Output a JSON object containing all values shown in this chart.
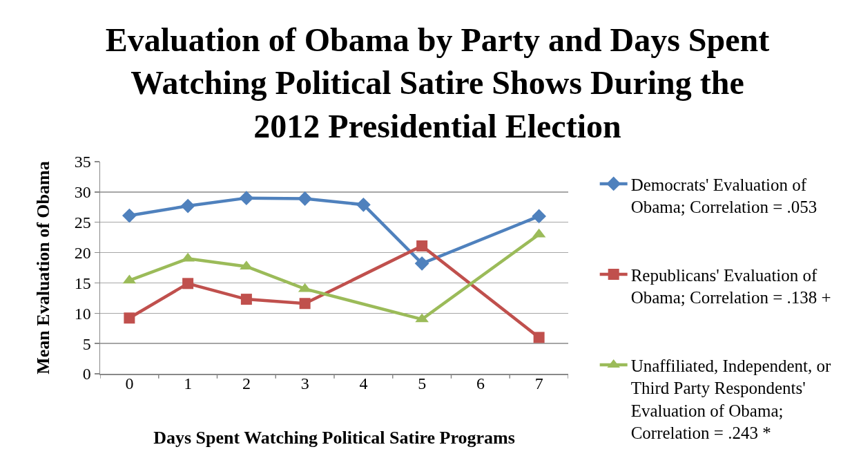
{
  "chart_data": {
    "type": "line",
    "title": "Evaluation of Obama by Party and Days Spent Watching Political Satire Shows During the 2012 Presidential Election",
    "xlabel": "Days Spent Watching Political Satire Programs",
    "ylabel": "Mean Evaluation of Obama",
    "categories": [
      "0",
      "1",
      "2",
      "3",
      "4",
      "5",
      "6",
      "7"
    ],
    "series": [
      {
        "name": "Democrats' Evaluation of Obama; Correlation = .053",
        "color": "#4f81bd",
        "marker": "diamond",
        "values": [
          26.1,
          27.7,
          29.0,
          28.9,
          27.9,
          18.2,
          null,
          26.0
        ]
      },
      {
        "name": "Republicans' Evaluation of Obama; Correlation = .138 +",
        "color": "#c0504d",
        "marker": "square",
        "values": [
          9.2,
          14.9,
          12.3,
          11.6,
          null,
          21.1,
          null,
          6.0
        ]
      },
      {
        "name": "Unaffiliated, Independent, or Third Party Respondents' Evaluation of Obama; Correlation = .243 *",
        "color": "#9bbb59",
        "marker": "triangle",
        "values": [
          15.4,
          19.0,
          17.7,
          14.0,
          null,
          9.0,
          null,
          23.0
        ]
      }
    ],
    "ylim": [
      0,
      35
    ],
    "yticks": [
      0,
      5,
      10,
      15,
      20,
      25,
      30,
      35
    ],
    "grid": "y",
    "legend": "right",
    "line_style": "solid"
  }
}
